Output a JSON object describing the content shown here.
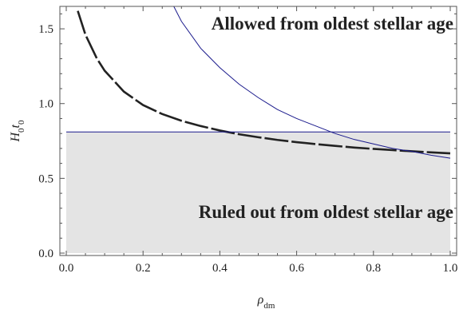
{
  "chart_data": {
    "type": "line",
    "xlim": [
      0,
      1
    ],
    "ylim": [
      0,
      1.65
    ],
    "x_ticks": [
      "0.0",
      "0.2",
      "0.4",
      "0.6",
      "0.8",
      "1.0"
    ],
    "y_ticks": [
      "0.0",
      "0.5",
      "1.0",
      "1.5"
    ],
    "xlabel": "ρdm",
    "xlabel_main": "ρ",
    "xlabel_sub": "dm",
    "ylabel_H": "H",
    "ylabel_sub1": "0",
    "ylabel_t": "t",
    "ylabel_sub2": "0",
    "annotations": {
      "allowed": "Allowed from oldest stellar age",
      "ruled_out": "Ruled out from oldest stellar age"
    },
    "shaded_region": {
      "x": [
        0.0,
        1.0
      ],
      "y": [
        0.0,
        0.81
      ],
      "color": "#e4e4e4"
    },
    "colors": {
      "dashed": "#222222",
      "blue": "#1a1a8c"
    },
    "series": [
      {
        "style": "dashed",
        "x": [
          0.03,
          0.05,
          0.08,
          0.1,
          0.15,
          0.2,
          0.25,
          0.3,
          0.35,
          0.4,
          0.45,
          0.5,
          0.55,
          0.6,
          0.65,
          0.7,
          0.75,
          0.8,
          0.85,
          0.9,
          0.95,
          1.0
        ],
        "y": [
          1.62,
          1.46,
          1.3,
          1.22,
          1.08,
          0.99,
          0.93,
          0.885,
          0.85,
          0.82,
          0.795,
          0.775,
          0.757,
          0.742,
          0.729,
          0.717,
          0.706,
          0.697,
          0.689,
          0.681,
          0.674,
          0.667
        ]
      },
      {
        "style": "thin",
        "x": [
          0.28,
          0.3,
          0.35,
          0.4,
          0.45,
          0.5,
          0.55,
          0.6,
          0.65,
          0.7,
          0.75,
          0.8,
          0.85,
          0.9,
          0.95,
          1.0
        ],
        "y": [
          1.65,
          1.55,
          1.37,
          1.24,
          1.13,
          1.04,
          0.96,
          0.9,
          0.85,
          0.8,
          0.76,
          0.73,
          0.7,
          0.68,
          0.655,
          0.635
        ]
      },
      {
        "style": "thin",
        "x": [
          0.0,
          1.0
        ],
        "y": [
          0.81,
          0.81
        ]
      }
    ]
  }
}
